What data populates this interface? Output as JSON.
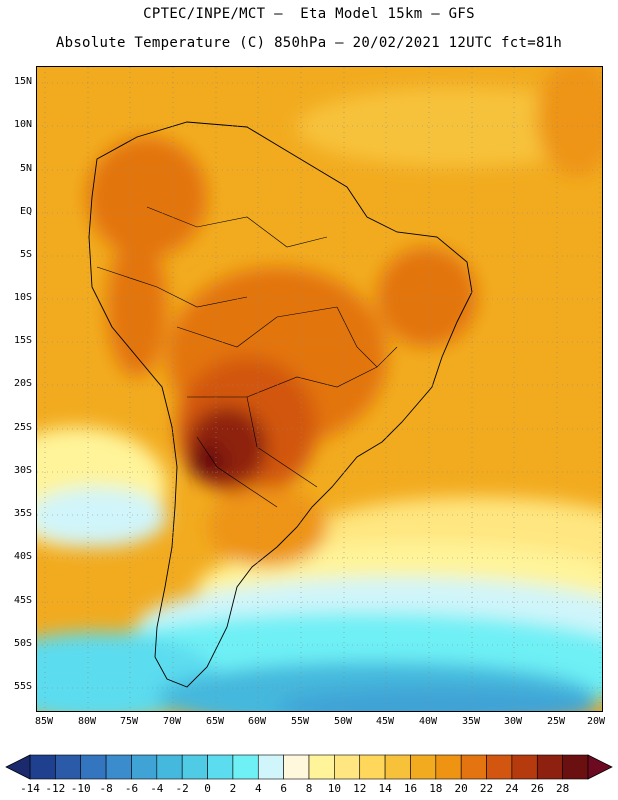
{
  "header": {
    "title_line1": "CPTEC/INPE/MCT –  Eta Model 15km – GFS",
    "title_line2": "Absolute Temperature (C) 850hPa – 20/02/2021 12UTC fct=81h"
  },
  "map": {
    "region": "South America",
    "variable": "Absolute Temperature (C)",
    "level": "850hPa",
    "lat_labels": [
      "15N",
      "10N",
      "5N",
      "EQ",
      "5S",
      "10S",
      "15S",
      "20S",
      "25S",
      "30S",
      "35S",
      "40S",
      "45S",
      "50S",
      "55S"
    ],
    "lon_labels": [
      "85W",
      "80W",
      "75W",
      "70W",
      "65W",
      "60W",
      "55W",
      "50W",
      "45W",
      "40W",
      "35W",
      "30W",
      "25W",
      "20W"
    ]
  },
  "colorbar": {
    "labels": [
      "-14",
      "-12",
      "-10",
      "-8",
      "-6",
      "-4",
      "-2",
      "0",
      "2",
      "4",
      "6",
      "8",
      "10",
      "12",
      "14",
      "16",
      "18",
      "20",
      "22",
      "24",
      "26",
      "28"
    ],
    "colors": [
      "#1f3f8f",
      "#2a5aa8",
      "#3376bf",
      "#3a8ccc",
      "#3fa3d6",
      "#45b8dd",
      "#4fcbe6",
      "#5cdcef",
      "#6ef0f5",
      "#d0f5fa",
      "#fff8dd",
      "#fff49a",
      "#ffe680",
      "#ffd75a",
      "#f7c23a",
      "#f2ab1f",
      "#ee9412",
      "#e3740f",
      "#d2560f",
      "#b53a0e",
      "#8e200f",
      "#6b1010"
    ]
  }
}
